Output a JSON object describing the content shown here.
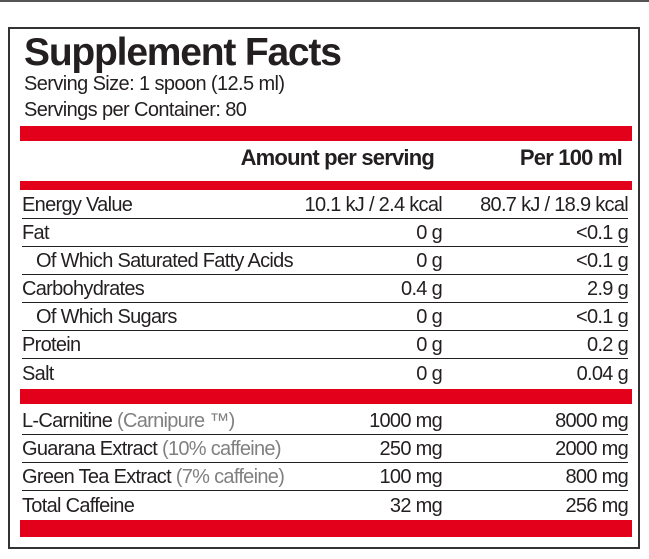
{
  "title": "Supplement Facts",
  "serving_size": "Serving Size: 1 spoon (12.5 ml)",
  "servings_per_container": "Servings per Container: 80",
  "columns": {
    "amount": "Amount per serving",
    "per100": "Per 100 ml"
  },
  "accent_color": "#e2001a",
  "nutrition": [
    {
      "label": "Energy Value",
      "amount": "10.1 kJ / 2.4 kcal",
      "per100": "80.7 kJ / 18.9 kcal"
    },
    {
      "label": "Fat",
      "amount": "0 g",
      "per100": "<0.1 g"
    },
    {
      "label": "Of Which Saturated Fatty Acids",
      "amount": "0 g",
      "per100": "<0.1 g",
      "indent": true
    },
    {
      "label": "Carbohydrates",
      "amount": "0.4 g",
      "per100": "2.9 g"
    },
    {
      "label": "Of Which Sugars",
      "amount": "0 g",
      "per100": "<0.1 g",
      "indent": true
    },
    {
      "label": "Protein",
      "amount": "0 g",
      "per100": "0.2 g"
    },
    {
      "label": "Salt",
      "amount": "0 g",
      "per100": "0.04 g"
    }
  ],
  "actives": [
    {
      "label": "L-Carnitine",
      "note": "(Carnipure ™)",
      "amount": "1000 mg",
      "per100": "8000 mg"
    },
    {
      "label": "Guarana Extract",
      "note": "(10% caffeine)",
      "amount": "250 mg",
      "per100": "2000 mg"
    },
    {
      "label": "Green Tea Extract",
      "note": "(7% caffeine)",
      "amount": "100 mg",
      "per100": "800 mg"
    },
    {
      "label": "Total Caffeine",
      "note": "",
      "amount": "32 mg",
      "per100": "256 mg"
    }
  ]
}
